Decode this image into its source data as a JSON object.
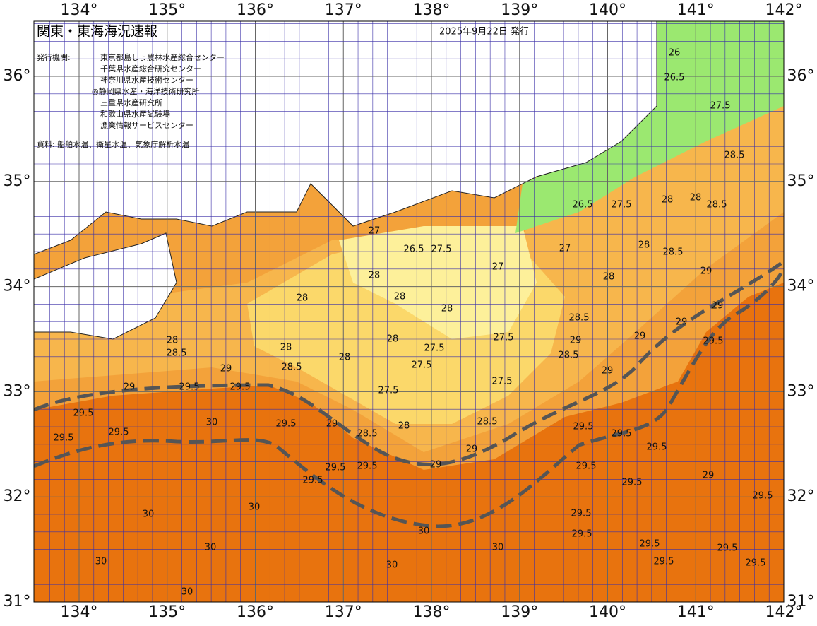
{
  "map": {
    "title": "関東・東海海況速報",
    "date": "2025年9月22日 発行",
    "agencies_label": "発行機関:",
    "agencies": [
      "東京都島しょ農林水産総合センター",
      "千葉県水産総合研究センター",
      "神奈川県水産技術センター",
      "◎静岡県水産・海洋技術研究所",
      "三重県水産研究所",
      "和歌山県水産試験場",
      "漁業情報サービスセンター"
    ],
    "source": "資料: 船舶水温、衛星水温、気象庁解析水温",
    "lon_labels": [
      "134°",
      "135°",
      "136°",
      "137°",
      "138°",
      "139°",
      "140°",
      "141°",
      "142°"
    ],
    "lat_labels": [
      "36°",
      "35°",
      "34°",
      "33°",
      "32°",
      "31°"
    ],
    "contour_labels": [
      "29",
      "29.5",
      "29.5",
      "29",
      "29.5",
      "29.5",
      "29.5",
      "28.5",
      "28",
      "28",
      "28.5",
      "28",
      "28",
      "28",
      "28",
      "28",
      "27.5",
      "27.5",
      "27.5",
      "28",
      "29",
      "28.5",
      "29.5",
      "29.5",
      "29.5",
      "29.5",
      "28",
      "29",
      "28.5",
      "29",
      "27.5",
      "27.5",
      "28.5",
      "29",
      "28.5",
      "29",
      "29.5",
      "29.5",
      "29.5",
      "29.5",
      "29.5",
      "29.5",
      "29.5",
      "29",
      "29",
      "29",
      "29",
      "29.5",
      "29.5",
      "29",
      "29.5",
      "29.5",
      "29.5",
      "29.5",
      "28.5",
      "28.5",
      "28",
      "28",
      "28.5",
      "28",
      "28",
      "27.5",
      "26.5",
      "27",
      "27",
      "27.5",
      "26.5",
      "27",
      "30",
      "30",
      "30",
      "30",
      "30",
      "30",
      "30",
      "30",
      "30",
      "26",
      "26.5",
      "27.5"
    ]
  }
}
